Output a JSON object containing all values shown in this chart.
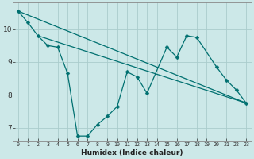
{
  "xlabel": "Humidex (Indice chaleur)",
  "background_color": "#cce8e8",
  "grid_color": "#aacccc",
  "line_color": "#007070",
  "xlim": [
    -0.5,
    23.5
  ],
  "ylim": [
    6.6,
    10.8
  ],
  "yticks": [
    7,
    8,
    9,
    10
  ],
  "xticks": [
    0,
    1,
    2,
    3,
    4,
    5,
    6,
    7,
    8,
    9,
    10,
    11,
    12,
    13,
    14,
    15,
    16,
    17,
    18,
    19,
    20,
    21,
    22,
    23
  ],
  "line1": {
    "x": [
      0,
      1,
      2,
      3,
      4,
      5,
      6,
      7,
      8,
      9,
      10,
      11,
      12,
      13,
      15,
      16,
      17,
      18,
      20,
      21,
      22,
      23
    ],
    "y": [
      10.55,
      10.2,
      9.8,
      9.5,
      9.45,
      8.65,
      6.75,
      6.75,
      7.1,
      7.35,
      7.65,
      8.7,
      8.55,
      8.05,
      9.45,
      9.15,
      9.8,
      9.75,
      8.85,
      8.45,
      8.15,
      7.75
    ]
  },
  "line2": {
    "x": [
      0,
      23
    ],
    "y": [
      10.55,
      7.75
    ]
  },
  "line3": {
    "x": [
      2,
      23
    ],
    "y": [
      9.8,
      7.75
    ]
  }
}
